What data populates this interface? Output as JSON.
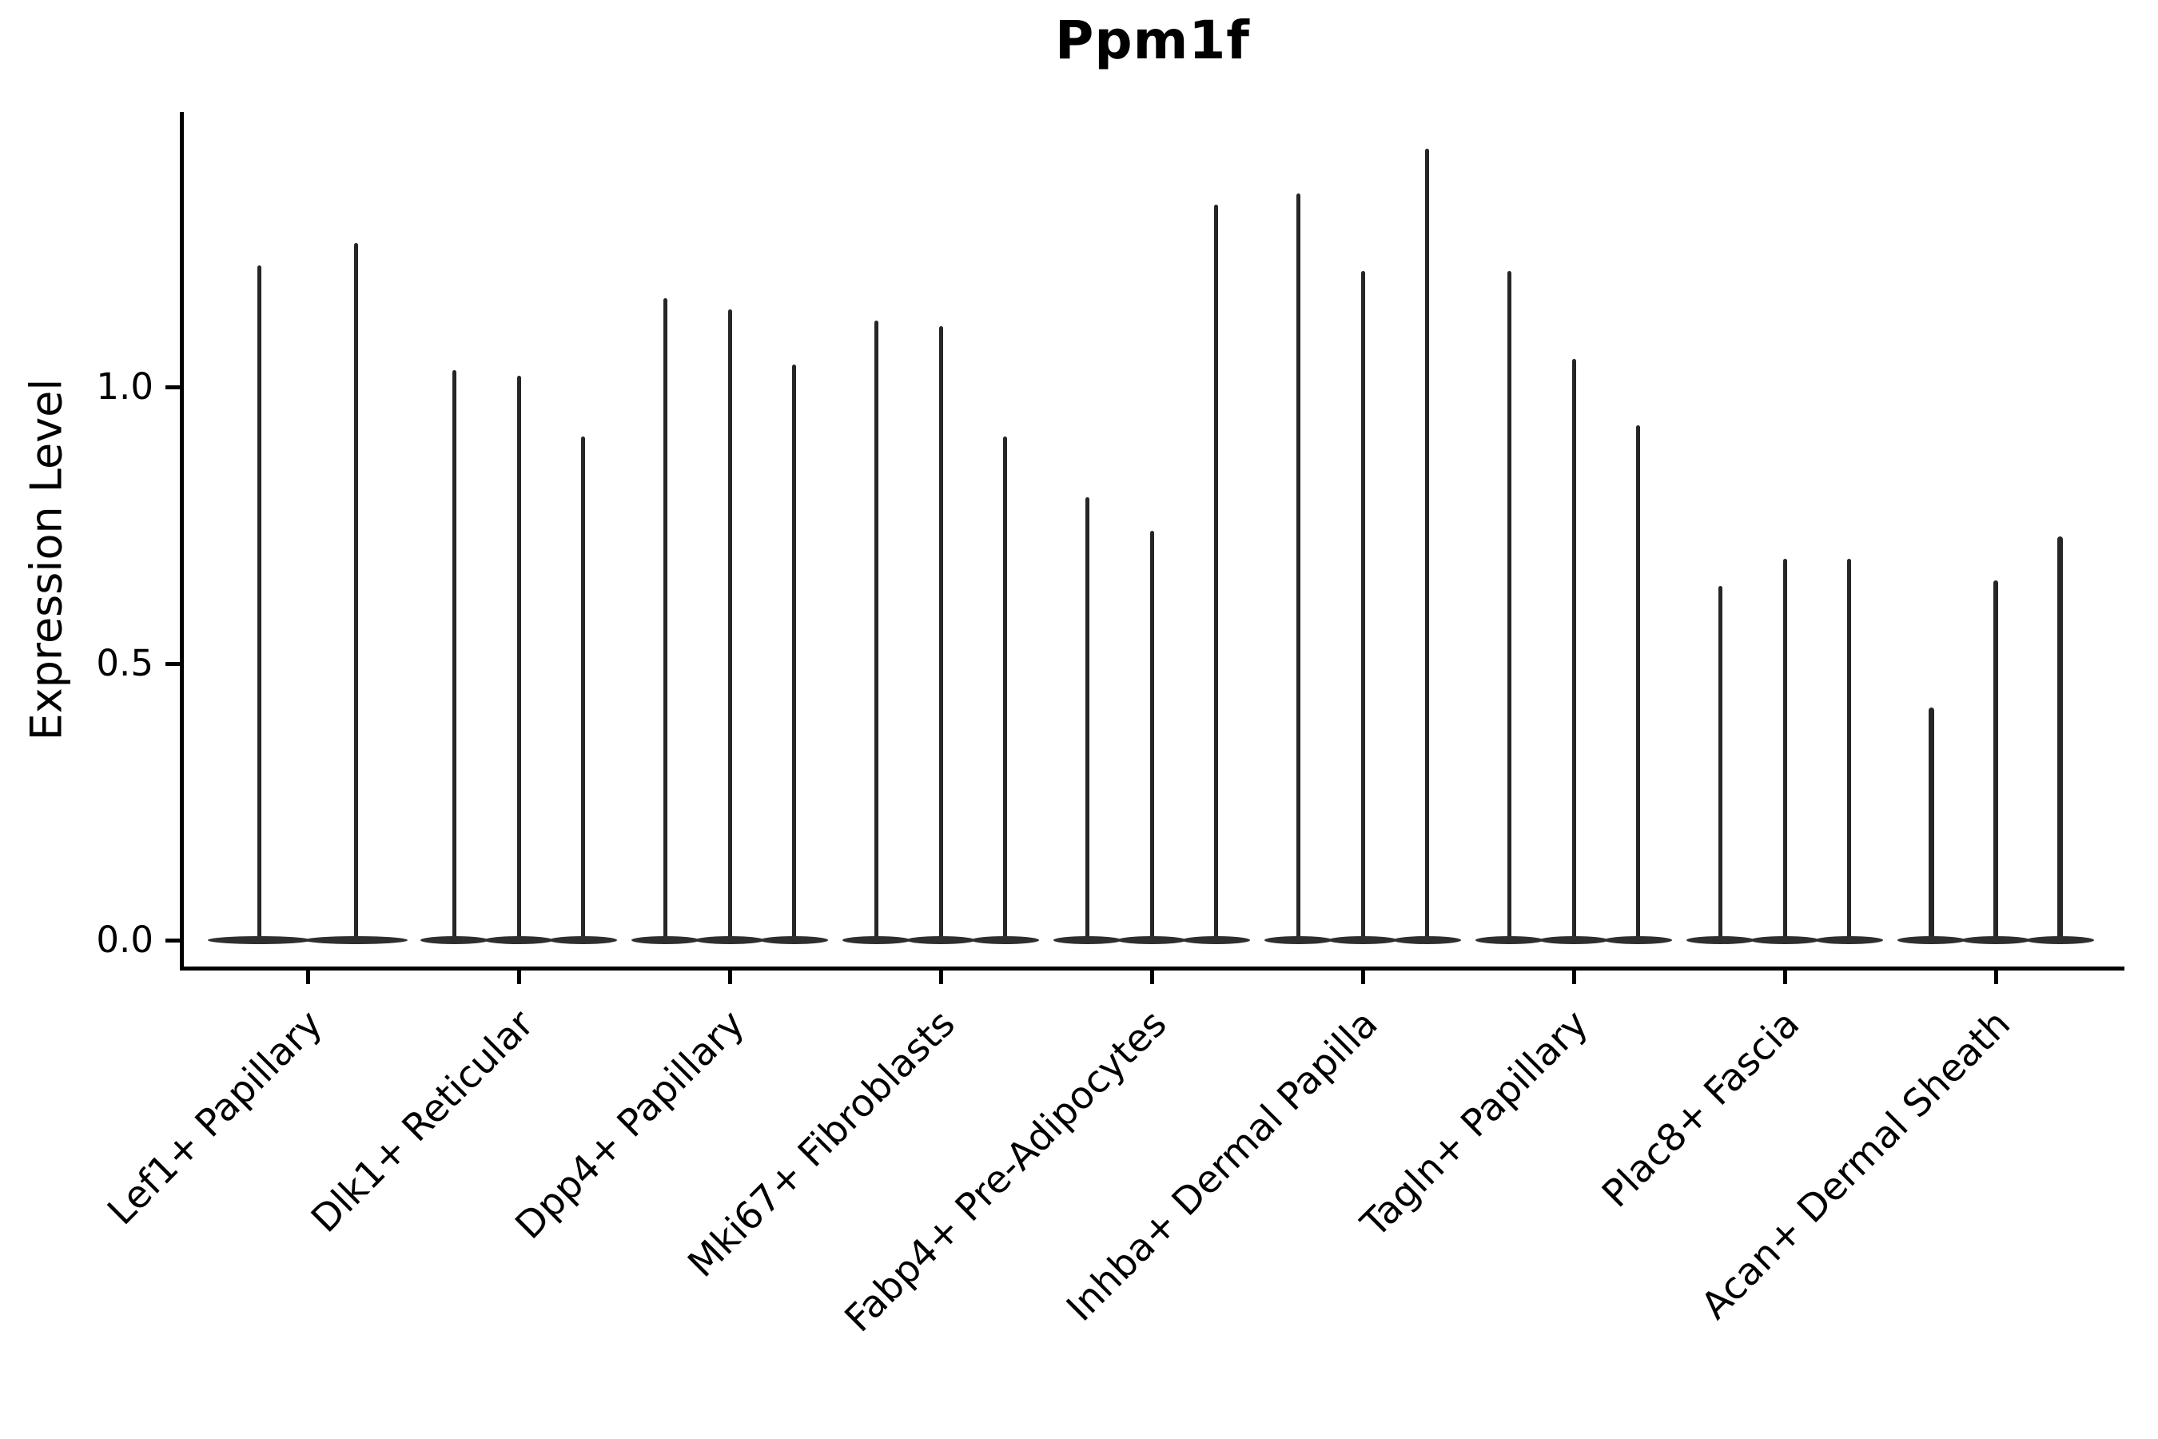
{
  "figure": {
    "title": "Ppm1f",
    "background_color": "#ffffff"
  },
  "chart_data": {
    "type": "violin",
    "title": "Ppm1f",
    "xlabel": "",
    "ylabel": "Expression Level",
    "grid": false,
    "legend": "none",
    "axis": {
      "spines": [
        "left",
        "bottom"
      ],
      "ylim": [
        -0.05,
        1.5
      ],
      "yticks": [
        {
          "value": 1.0,
          "label": "1.0"
        },
        {
          "value": 0.5,
          "label": "0.5"
        },
        {
          "value": 0.0,
          "label": "0.0"
        }
      ],
      "xtick_label_rotation_deg": 45
    },
    "description": "Each category shows thin violins: a flat dense base at expression 0 and a hair-thin spike rising to the maximum expression value.",
    "categories": [
      {
        "label": "Lef1+ Papillary",
        "violin_max_values": [
          1.22,
          1.26
        ]
      },
      {
        "label": "Dlk1+ Reticular",
        "violin_max_values": [
          1.03,
          1.02,
          0.91
        ]
      },
      {
        "label": "Dpp4+ Papillary",
        "violin_max_values": [
          1.16,
          1.14,
          1.04
        ]
      },
      {
        "label": "Mki67+ Fibroblasts",
        "violin_max_values": [
          1.12,
          1.11,
          0.91
        ]
      },
      {
        "label": "Fabp4+ Pre-Adipocytes",
        "violin_max_values": [
          0.8,
          0.74,
          1.33
        ]
      },
      {
        "label": "Inhba+ Dermal Papilla",
        "violin_max_values": [
          1.35,
          1.21,
          1.43
        ]
      },
      {
        "label": "Tagln+ Papillary",
        "violin_max_values": [
          1.21,
          1.05,
          0.93
        ]
      },
      {
        "label": "Plac8+ Fascia",
        "violin_max_values": [
          0.64,
          0.69,
          0.69
        ]
      },
      {
        "label": "Acan+ Dermal Sheath",
        "violin_max_values": [
          0.42,
          0.65,
          0.73
        ]
      }
    ],
    "baseline_value": 0.0
  },
  "colors": {
    "axis": "#000000",
    "text": "#000000",
    "violin_fill": "#2e2e2e",
    "spike": "#262626",
    "background": "#ffffff"
  }
}
